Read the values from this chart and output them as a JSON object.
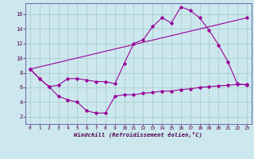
{
  "xlabel": "Windchill (Refroidissement éolien,°C)",
  "bg_color": "#cce8ee",
  "grid_color": "#aacccc",
  "line_color": "#990099",
  "spine_color": "#6666aa",
  "tick_color": "#550055",
  "x_ticks": [
    0,
    1,
    2,
    3,
    4,
    5,
    6,
    7,
    8,
    9,
    10,
    11,
    12,
    13,
    14,
    15,
    16,
    17,
    18,
    19,
    20,
    21,
    22,
    23
  ],
  "y_ticks": [
    2,
    4,
    6,
    8,
    10,
    12,
    14,
    16
  ],
  "ylim": [
    1.0,
    17.5
  ],
  "xlim": [
    -0.5,
    23.5
  ],
  "series1_x": [
    0,
    1,
    2,
    3,
    4,
    5,
    6,
    7,
    8,
    9,
    10,
    11,
    12,
    13,
    14,
    15,
    16,
    17,
    18,
    19,
    20,
    21,
    22,
    23
  ],
  "series1_y": [
    8.5,
    7.2,
    6.1,
    6.3,
    7.2,
    7.2,
    7.0,
    6.8,
    6.8,
    6.5,
    9.3,
    12.0,
    12.5,
    14.3,
    15.5,
    14.8,
    17.0,
    16.5,
    15.5,
    13.8,
    11.8,
    9.5,
    6.5,
    6.3
  ],
  "series2_x": [
    0,
    1,
    2,
    3,
    4,
    5,
    6,
    7,
    8,
    9,
    10,
    11,
    12,
    13,
    14,
    15,
    16,
    17,
    18,
    19,
    20,
    21,
    22,
    23
  ],
  "series2_y": [
    8.5,
    7.2,
    6.1,
    4.8,
    4.3,
    4.0,
    2.8,
    2.5,
    2.5,
    4.8,
    5.0,
    5.0,
    5.2,
    5.3,
    5.5,
    5.5,
    5.7,
    5.8,
    6.0,
    6.1,
    6.2,
    6.3,
    6.4,
    6.4
  ],
  "series3_x": [
    0,
    23
  ],
  "series3_y": [
    8.5,
    15.5
  ]
}
